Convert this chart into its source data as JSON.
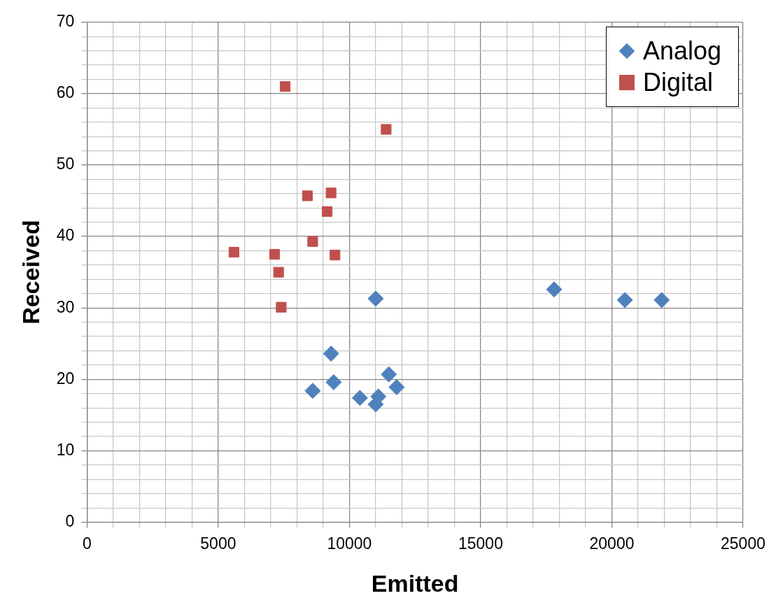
{
  "chart_data": {
    "type": "scatter",
    "xlabel": "Emitted",
    "ylabel": "Received",
    "xlim": [
      0,
      25000
    ],
    "ylim": [
      0,
      70
    ],
    "xticks": [
      0,
      {
        "value": 1000,
        "label": null
      },
      {
        "value": 2000,
        "label": null
      },
      {
        "value": 3000,
        "label": null
      },
      {
        "value": 4000,
        "label": null
      },
      5000,
      {
        "value": 6000,
        "label": null
      },
      {
        "value": 7000,
        "label": null
      },
      {
        "value": 8000,
        "label": null
      },
      {
        "value": 9000,
        "label": null
      },
      10000,
      {
        "value": 11000,
        "label": null
      },
      {
        "value": 12000,
        "label": null
      },
      {
        "value": 13000,
        "label": null
      },
      {
        "value": 14000,
        "label": null
      },
      15000,
      {
        "value": 16000,
        "label": null
      },
      {
        "value": 17000,
        "label": null
      },
      {
        "value": 18000,
        "label": null
      },
      {
        "value": 19000,
        "label": null
      },
      20000,
      {
        "value": 21000,
        "label": null
      },
      {
        "value": 22000,
        "label": null
      },
      {
        "value": 23000,
        "label": null
      },
      {
        "value": 24000,
        "label": null
      },
      25000
    ],
    "yticks": [
      0,
      {
        "value": 2,
        "label": null
      },
      {
        "value": 4,
        "label": null
      },
      {
        "value": 6,
        "label": null
      },
      {
        "value": 8,
        "label": null
      },
      10,
      {
        "value": 12,
        "label": null
      },
      {
        "value": 14,
        "label": null
      },
      {
        "value": 16,
        "label": null
      },
      {
        "value": 18,
        "label": null
      },
      20,
      {
        "value": 22,
        "label": null
      },
      {
        "value": 24,
        "label": null
      },
      {
        "value": 26,
        "label": null
      },
      {
        "value": 28,
        "label": null
      },
      30,
      {
        "value": 32,
        "label": null
      },
      {
        "value": 34,
        "label": null
      },
      {
        "value": 36,
        "label": null
      },
      {
        "value": 38,
        "label": null
      },
      40,
      {
        "value": 42,
        "label": null
      },
      {
        "value": 44,
        "label": null
      },
      {
        "value": 46,
        "label": null
      },
      {
        "value": 48,
        "label": null
      },
      50,
      {
        "value": 52,
        "label": null
      },
      {
        "value": 54,
        "label": null
      },
      {
        "value": 56,
        "label": null
      },
      {
        "value": 58,
        "label": null
      },
      60,
      {
        "value": 62,
        "label": null
      },
      {
        "value": 64,
        "label": null
      },
      {
        "value": 66,
        "label": null
      },
      {
        "value": 68,
        "label": null
      },
      70
    ],
    "grid": true,
    "legend": "top right",
    "series": [
      {
        "name": "Analog",
        "color": "#4f81bd",
        "marker": "diamond",
        "x": [
          11000,
          17800,
          20500,
          21900,
          9300,
          9400,
          8600,
          10400,
          11100,
          11000,
          11500,
          11800
        ],
        "values": [
          31.3,
          32.6,
          31.1,
          31.1,
          23.6,
          19.6,
          18.4,
          17.4,
          17.6,
          16.5,
          20.7,
          18.9
        ]
      },
      {
        "name": "Digital",
        "color": "#c0504d",
        "marker": "square",
        "x": [
          7550,
          11400,
          8400,
          9300,
          9150,
          8600,
          9450,
          5600,
          7150,
          7300,
          7400
        ],
        "values": [
          61.0,
          55.0,
          45.7,
          46.1,
          43.5,
          39.3,
          37.4,
          37.8,
          37.5,
          35.0,
          30.1
        ]
      }
    ]
  }
}
